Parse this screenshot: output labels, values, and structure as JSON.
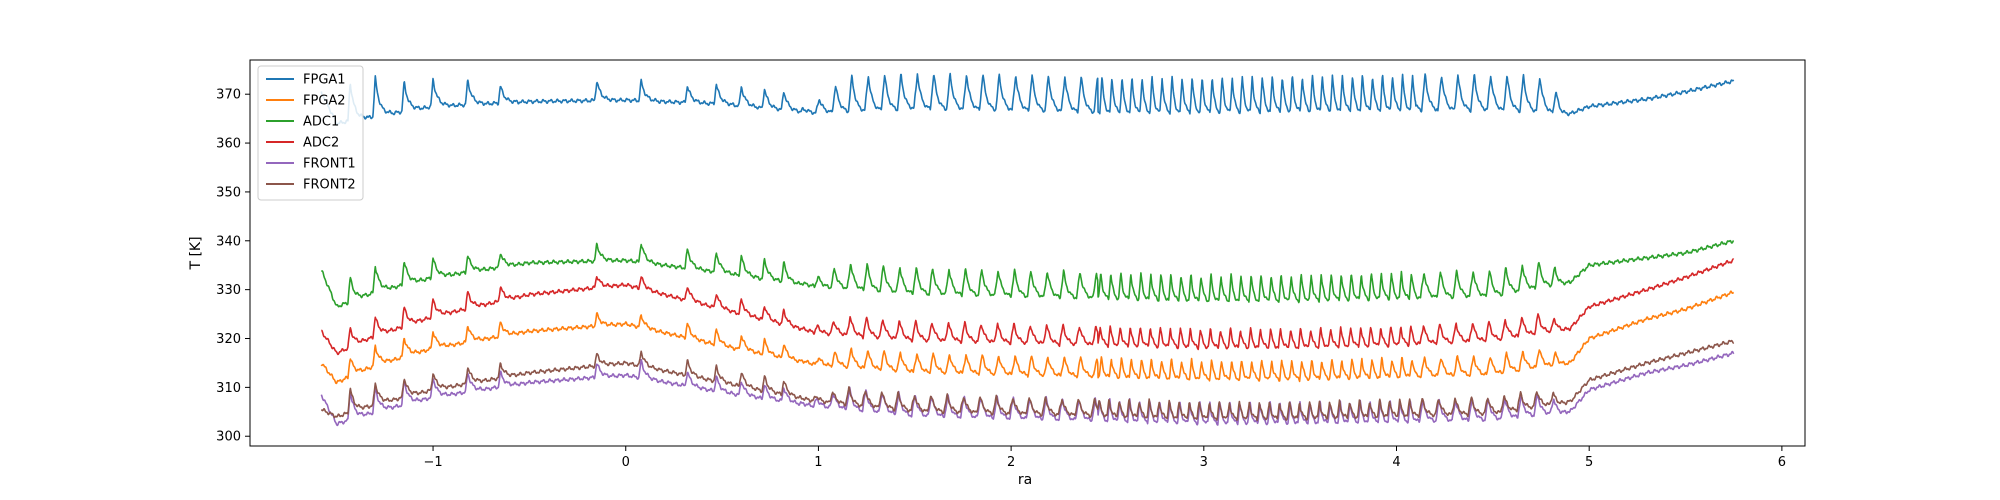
{
  "chart_data": {
    "type": "line",
    "title": "",
    "xlabel": "ra",
    "ylabel": "T [K]",
    "xlim": [
      -1.95,
      6.12
    ],
    "ylim": [
      298,
      377
    ],
    "x_ticks": [
      -1,
      0,
      1,
      2,
      3,
      4,
      5,
      6
    ],
    "x_tick_labels": [
      "−1",
      "0",
      "1",
      "2",
      "3",
      "4",
      "5",
      "6"
    ],
    "y_ticks": [
      300,
      310,
      320,
      330,
      340,
      350,
      360,
      370
    ],
    "y_tick_labels": [
      "300",
      "310",
      "320",
      "330",
      "340",
      "350",
      "360",
      "370"
    ],
    "grid": false,
    "legend_position": "top-left",
    "series": [
      {
        "name": "FPGA1",
        "color": "#1f77b4",
        "points": [
          [
            -1.58,
            370.5
          ],
          [
            -1.5,
            364.0
          ],
          [
            -1.3,
            365.5
          ],
          [
            -1.0,
            367.5
          ],
          [
            -0.5,
            368.5
          ],
          [
            0.0,
            368.8
          ],
          [
            0.5,
            368.0
          ],
          [
            1.0,
            366.0
          ],
          [
            1.5,
            366.8
          ],
          [
            2.0,
            366.5
          ],
          [
            2.5,
            366.0
          ],
          [
            3.0,
            366.0
          ],
          [
            3.5,
            366.3
          ],
          [
            4.0,
            366.5
          ],
          [
            4.5,
            366.5
          ],
          [
            4.9,
            366.0
          ],
          [
            5.0,
            367.5
          ],
          [
            5.3,
            369.0
          ],
          [
            5.5,
            370.5
          ],
          [
            5.75,
            372.7
          ]
        ],
        "spikes": [
          [
            -1.43,
            8
          ],
          [
            -1.3,
            8
          ],
          [
            -1.15,
            6
          ],
          [
            -1.0,
            5.5
          ],
          [
            -0.82,
            5
          ],
          [
            -0.65,
            3.5
          ],
          [
            -0.15,
            4
          ],
          [
            0.08,
            4
          ],
          [
            0.32,
            3.5
          ],
          [
            0.47,
            4
          ],
          [
            0.6,
            4
          ],
          [
            0.72,
            4
          ],
          [
            0.82,
            4
          ]
        ]
      },
      {
        "name": "FPGA2",
        "color": "#ff7f0e",
        "points": [
          [
            -1.58,
            315.0
          ],
          [
            -1.5,
            311.0
          ],
          [
            -1.3,
            314.5
          ],
          [
            -1.0,
            318.0
          ],
          [
            -0.5,
            321.5
          ],
          [
            0.0,
            323.0
          ],
          [
            0.5,
            318.5
          ],
          [
            1.0,
            314.5
          ],
          [
            1.5,
            313.0
          ],
          [
            2.0,
            312.5
          ],
          [
            2.5,
            312.0
          ],
          [
            3.0,
            311.5
          ],
          [
            3.5,
            311.5
          ],
          [
            4.0,
            312.0
          ],
          [
            4.5,
            312.5
          ],
          [
            4.9,
            315.0
          ],
          [
            5.0,
            320.0
          ],
          [
            5.3,
            324.0
          ],
          [
            5.5,
            326.0
          ],
          [
            5.75,
            329.5
          ]
        ],
        "spikes": [
          [
            -1.43,
            4
          ],
          [
            -1.3,
            4
          ],
          [
            -1.15,
            4
          ],
          [
            -1.0,
            3.5
          ],
          [
            -0.82,
            3.5
          ],
          [
            -0.65,
            3
          ],
          [
            -0.15,
            2.5
          ],
          [
            0.08,
            2.5
          ],
          [
            0.32,
            3
          ],
          [
            0.47,
            3
          ],
          [
            0.6,
            3
          ],
          [
            0.72,
            3
          ],
          [
            0.82,
            3
          ]
        ]
      },
      {
        "name": "ADC1",
        "color": "#2ca02c",
        "points": [
          [
            -1.58,
            334.0
          ],
          [
            -1.5,
            326.5
          ],
          [
            -1.3,
            329.5
          ],
          [
            -1.0,
            332.5
          ],
          [
            -0.5,
            335.5
          ],
          [
            0.0,
            336.0
          ],
          [
            0.5,
            333.5
          ],
          [
            1.0,
            330.5
          ],
          [
            1.5,
            329.0
          ],
          [
            2.0,
            328.5
          ],
          [
            2.5,
            328.0
          ],
          [
            3.0,
            327.5
          ],
          [
            3.5,
            327.5
          ],
          [
            4.0,
            328.0
          ],
          [
            4.5,
            328.5
          ],
          [
            4.9,
            331.5
          ],
          [
            5.0,
            335.0
          ],
          [
            5.3,
            336.5
          ],
          [
            5.5,
            337.5
          ],
          [
            5.75,
            340.0
          ]
        ],
        "spikes": [
          [
            -1.43,
            5
          ],
          [
            -1.3,
            5.5
          ],
          [
            -1.15,
            5
          ],
          [
            -1.0,
            4
          ],
          [
            -0.82,
            3.5
          ],
          [
            -0.65,
            3
          ],
          [
            -0.15,
            3.5
          ],
          [
            0.08,
            4
          ],
          [
            0.32,
            4
          ],
          [
            0.47,
            4
          ],
          [
            0.6,
            4
          ],
          [
            0.72,
            4
          ],
          [
            0.82,
            4
          ]
        ]
      },
      {
        "name": "ADC2",
        "color": "#d62728",
        "points": [
          [
            -1.58,
            321.5
          ],
          [
            -1.5,
            317.0
          ],
          [
            -1.3,
            320.5
          ],
          [
            -1.0,
            324.5
          ],
          [
            -0.5,
            329.0
          ],
          [
            0.0,
            331.0
          ],
          [
            0.5,
            326.0
          ],
          [
            1.0,
            321.0
          ],
          [
            1.5,
            319.5
          ],
          [
            2.0,
            319.0
          ],
          [
            2.5,
            318.5
          ],
          [
            3.0,
            318.0
          ],
          [
            3.5,
            318.0
          ],
          [
            4.0,
            318.5
          ],
          [
            4.5,
            319.5
          ],
          [
            4.9,
            322.0
          ],
          [
            5.0,
            326.5
          ],
          [
            5.3,
            330.0
          ],
          [
            5.5,
            332.5
          ],
          [
            5.75,
            336.0
          ]
        ],
        "spikes": [
          [
            -1.43,
            4
          ],
          [
            -1.3,
            4
          ],
          [
            -1.15,
            4
          ],
          [
            -1.0,
            3.5
          ],
          [
            -0.82,
            3.5
          ],
          [
            -0.65,
            3
          ],
          [
            -0.15,
            2.5
          ],
          [
            0.08,
            2.5
          ],
          [
            0.32,
            3
          ],
          [
            0.47,
            3
          ],
          [
            0.6,
            3
          ],
          [
            0.72,
            3
          ],
          [
            0.82,
            3
          ]
        ]
      },
      {
        "name": "FRONT1",
        "color": "#9467bd",
        "points": [
          [
            -1.58,
            308.5
          ],
          [
            -1.5,
            302.5
          ],
          [
            -1.3,
            305.0
          ],
          [
            -1.0,
            308.0
          ],
          [
            -0.5,
            311.0
          ],
          [
            0.0,
            312.5
          ],
          [
            0.5,
            309.0
          ],
          [
            1.0,
            306.0
          ],
          [
            1.5,
            304.0
          ],
          [
            2.0,
            303.5
          ],
          [
            2.5,
            303.0
          ],
          [
            3.0,
            302.5
          ],
          [
            3.5,
            302.5
          ],
          [
            4.0,
            302.8
          ],
          [
            4.5,
            303.2
          ],
          [
            4.9,
            305.0
          ],
          [
            5.0,
            309.5
          ],
          [
            5.3,
            313.0
          ],
          [
            5.5,
            314.5
          ],
          [
            5.75,
            317.0
          ]
        ],
        "spikes": [
          [
            -1.43,
            6
          ],
          [
            -1.3,
            5
          ],
          [
            -1.15,
            5
          ],
          [
            -1.0,
            4
          ],
          [
            -0.82,
            4
          ],
          [
            -0.65,
            3
          ],
          [
            -0.15,
            3
          ],
          [
            0.08,
            3.5
          ],
          [
            0.32,
            3
          ],
          [
            0.47,
            3
          ],
          [
            0.6,
            3
          ],
          [
            0.72,
            3
          ],
          [
            0.82,
            3
          ]
        ]
      },
      {
        "name": "FRONT2",
        "color": "#8c564b",
        "points": [
          [
            -1.58,
            305.5
          ],
          [
            -1.5,
            304.0
          ],
          [
            -1.3,
            306.5
          ],
          [
            -1.0,
            309.5
          ],
          [
            -0.5,
            313.0
          ],
          [
            0.0,
            315.0
          ],
          [
            0.5,
            311.0
          ],
          [
            1.0,
            307.0
          ],
          [
            1.5,
            305.0
          ],
          [
            2.0,
            304.5
          ],
          [
            2.5,
            304.0
          ],
          [
            3.0,
            303.5
          ],
          [
            3.5,
            303.5
          ],
          [
            4.0,
            304.0
          ],
          [
            4.5,
            304.5
          ],
          [
            4.9,
            307.0
          ],
          [
            5.0,
            311.5
          ],
          [
            5.3,
            315.0
          ],
          [
            5.5,
            317.0
          ],
          [
            5.75,
            319.5
          ]
        ],
        "spikes": [
          [
            -1.43,
            5
          ],
          [
            -1.3,
            4.5
          ],
          [
            -1.15,
            4
          ],
          [
            -1.0,
            3.5
          ],
          [
            -0.82,
            3.5
          ],
          [
            -0.65,
            3
          ],
          [
            -0.15,
            2.5
          ],
          [
            0.08,
            3
          ],
          [
            0.32,
            3
          ],
          [
            0.47,
            3
          ],
          [
            0.6,
            3
          ],
          [
            0.72,
            3
          ],
          [
            0.82,
            3
          ]
        ]
      }
    ],
    "oscillation": {
      "from_x": 0.9,
      "to_x": 4.9,
      "dense_from_x": 2.45,
      "dense_to_x": 4.1,
      "amplitude": {
        "FPGA1": 7.5,
        "FPGA2": 4.0,
        "ADC1": 5.5,
        "ADC2": 4.0,
        "FRONT1": 4.5,
        "FRONT2": 3.5
      }
    }
  }
}
